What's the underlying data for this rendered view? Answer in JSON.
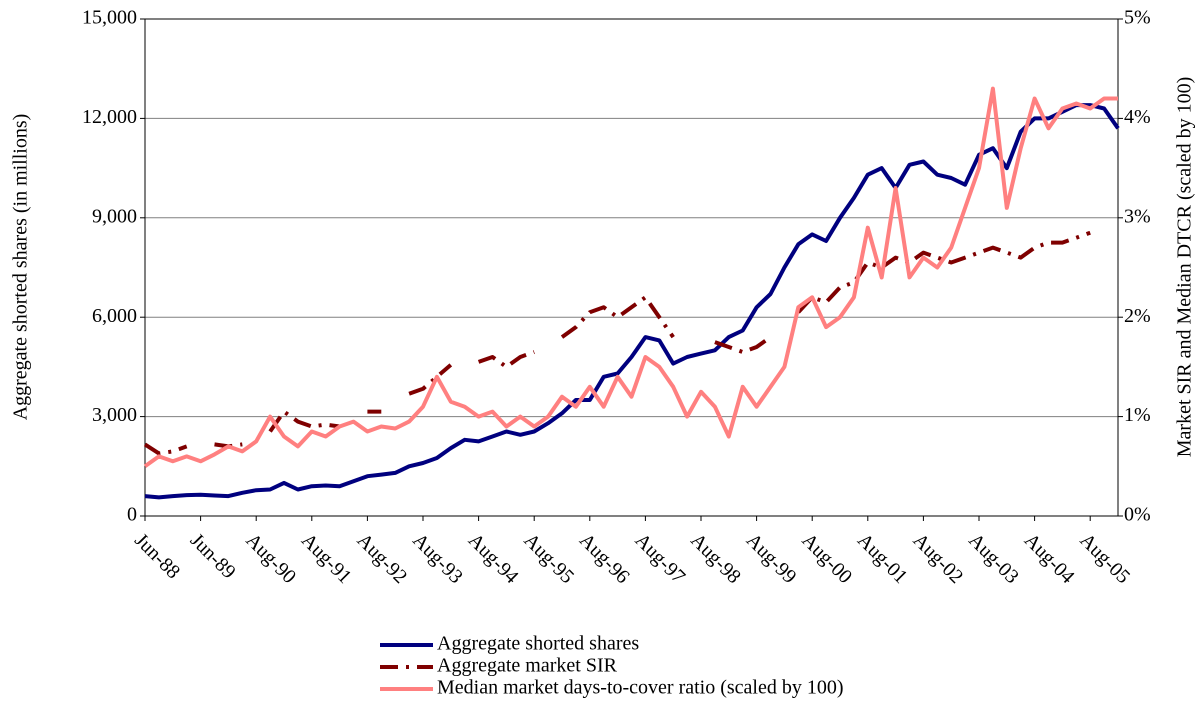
{
  "chart_data": {
    "type": "line",
    "y_label": "Aggregate shorted shares (in millions)",
    "y2_label": "Market SIR and Median DTCR (scaled by 100)",
    "categories": [
      "Jun-88",
      null,
      null,
      null,
      "Jun-89",
      null,
      null,
      null,
      "Aug-90",
      null,
      null,
      null,
      "Aug-91",
      null,
      null,
      null,
      "Aug-92",
      null,
      null,
      null,
      "Aug-93",
      null,
      null,
      null,
      "Aug-94",
      null,
      null,
      null,
      "Aug-95",
      null,
      null,
      null,
      "Aug-96",
      null,
      null,
      null,
      "Aug-97",
      null,
      null,
      null,
      "Aug-98",
      null,
      null,
      null,
      "Aug-99",
      null,
      null,
      null,
      "Aug-00",
      null,
      null,
      null,
      "Aug-01",
      null,
      null,
      null,
      "Aug-02",
      null,
      null,
      null,
      "Aug-03",
      null,
      null,
      null,
      "Aug-04",
      null,
      null,
      null,
      "Aug-05",
      null,
      null
    ],
    "series": [
      {
        "name": "Aggregate shorted shares",
        "color": "#00007f",
        "style": "solid",
        "width": 4,
        "values": [
          600,
          560,
          600,
          630,
          640,
          620,
          600,
          700,
          780,
          800,
          1000,
          800,
          900,
          920,
          900,
          1050,
          1200,
          1250,
          1300,
          1500,
          1600,
          1750,
          2050,
          2300,
          2250,
          2400,
          2550,
          2450,
          2550,
          2800,
          3100,
          3500,
          3500,
          4200,
          4300,
          4800,
          5400,
          5300,
          4600,
          4800,
          4900,
          5000,
          5400,
          5600,
          6300,
          6700,
          7500,
          8200,
          8500,
          8300,
          9000,
          9600,
          10300,
          10500,
          9900,
          10600,
          10700,
          10300,
          10200,
          10000,
          10900,
          11100,
          10500,
          11600,
          12000,
          12000,
          12200,
          12400,
          12400,
          12300,
          11700
        ]
      },
      {
        "name": "Aggregate market SIR",
        "color": "#7f0000",
        "style": "dashed",
        "width": 4,
        "axis": "y2",
        "values": [
          0.72,
          0.63,
          0.65,
          0.7,
          null,
          0.72,
          0.7,
          0.72,
          null,
          0.85,
          1.05,
          0.95,
          0.9,
          0.92,
          0.9,
          null,
          1.05,
          1.05,
          null,
          1.23,
          1.28,
          1.4,
          1.52,
          null,
          1.55,
          1.6,
          1.5,
          1.6,
          1.65,
          null,
          1.8,
          1.9,
          2.05,
          2.1,
          2.0,
          2.1,
          2.2,
          2.0,
          1.8,
          null,
          null,
          1.75,
          1.7,
          1.65,
          1.7,
          1.8,
          null,
          2.05,
          2.2,
          2.15,
          2.3,
          2.35,
          2.55,
          2.5,
          2.6,
          2.55,
          2.65,
          2.6,
          2.55,
          2.6,
          2.65,
          2.7,
          2.65,
          2.6,
          2.7,
          2.75,
          2.75,
          2.8,
          2.85,
          null,
          null
        ]
      },
      {
        "name": "Median market days-to-cover ratio (scaled by 100)",
        "color": "#ff8080",
        "style": "solid",
        "width": 4,
        "axis": "y2",
        "values": [
          0.5,
          0.6,
          0.55,
          0.6,
          0.55,
          0.62,
          0.7,
          0.65,
          0.75,
          1.0,
          0.8,
          0.7,
          0.85,
          0.8,
          0.9,
          0.95,
          0.85,
          0.9,
          0.88,
          0.95,
          1.1,
          1.4,
          1.15,
          1.1,
          1.0,
          1.05,
          0.9,
          1.0,
          0.9,
          1.0,
          1.2,
          1.1,
          1.3,
          1.1,
          1.4,
          1.2,
          1.6,
          1.5,
          1.3,
          1.0,
          1.25,
          1.1,
          0.8,
          1.3,
          1.1,
          1.3,
          1.5,
          2.1,
          2.2,
          1.9,
          2.0,
          2.2,
          2.9,
          2.4,
          3.3,
          2.4,
          2.6,
          2.5,
          2.7,
          3.1,
          3.5,
          4.3,
          3.1,
          3.7,
          4.2,
          3.9,
          4.1,
          4.15,
          4.1,
          4.2,
          4.2
        ]
      }
    ],
    "ylim": [
      0,
      15000
    ],
    "yticks": [
      0,
      {
        "value": 3000,
        "label": "3,000"
      },
      {
        "value": 6000,
        "label": "6,000"
      },
      {
        "value": 9000,
        "label": "9,000"
      },
      {
        "value": 12000,
        "label": "12,000"
      },
      {
        "value": 15000,
        "label": "15,000"
      }
    ],
    "y2lim": [
      0,
      5
    ],
    "y2ticks": [
      {
        "value": 0,
        "label": "0%"
      },
      {
        "value": 1,
        "label": "1%"
      },
      {
        "value": 2,
        "label": "2%"
      },
      {
        "value": 3,
        "label": "3%"
      },
      {
        "value": 4,
        "label": "4%"
      },
      {
        "value": 5,
        "label": "5%"
      }
    ],
    "grid": true,
    "legend": "bottom"
  }
}
